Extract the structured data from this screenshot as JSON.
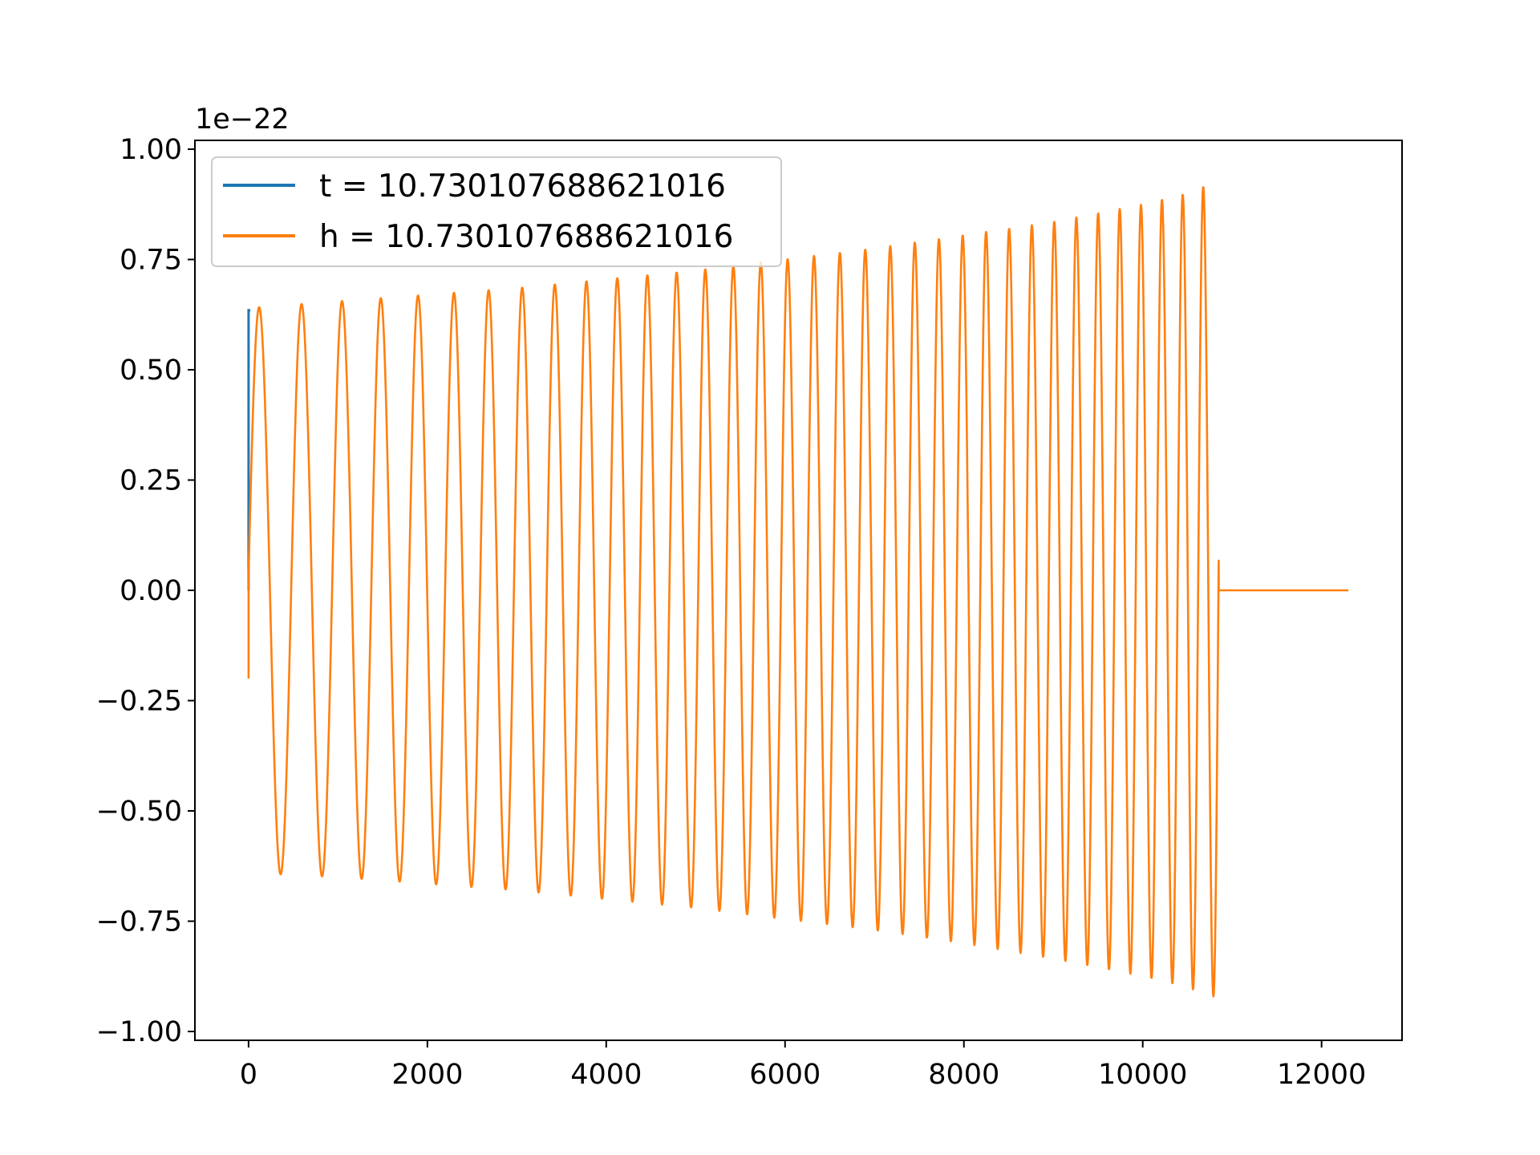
{
  "chart_data": {
    "type": "line",
    "title": "",
    "xlabel": "",
    "ylabel": "",
    "y_offset_label": "1e−22",
    "xlim": [
      -600,
      12900
    ],
    "ylim": [
      -1.02,
      1.02
    ],
    "x_ticks": [
      0,
      2000,
      4000,
      6000,
      8000,
      10000,
      12000
    ],
    "x_tick_labels": [
      "0",
      "2000",
      "4000",
      "6000",
      "8000",
      "10000",
      "12000"
    ],
    "y_ticks": [
      1.0,
      0.75,
      0.5,
      0.25,
      0.0,
      -0.25,
      -0.5,
      -0.75,
      -1.0
    ],
    "y_tick_labels": [
      "1.00",
      "0.75",
      "0.50",
      "0.25",
      "0.00",
      "−0.25",
      "−0.50",
      "−0.75",
      "−1.00"
    ],
    "grid": false,
    "legend_position": "top-left",
    "series": [
      {
        "name": "t = 10.730107688621016",
        "color": "#1f77b4",
        "x": [
          0,
          0,
          20
        ],
        "y": [
          0.0,
          0.635,
          0.635
        ]
      },
      {
        "name": "h = 10.730107688621016",
        "color": "#ff7f0e",
        "envelope": {
          "x": [
            0,
            1000,
            2000,
            3000,
            4000,
            5000,
            6000,
            7000,
            8000,
            9000,
            10000,
            10500,
            10850
          ],
          "upper": [
            0.64,
            0.655,
            0.67,
            0.685,
            0.705,
            0.725,
            0.75,
            0.775,
            0.805,
            0.835,
            0.875,
            0.9,
            0.93
          ],
          "lower": [
            -0.64,
            -0.65,
            -0.665,
            -0.68,
            -0.7,
            -0.72,
            -0.745,
            -0.77,
            -0.8,
            -0.835,
            -0.875,
            -0.9,
            -0.925
          ]
        },
        "flat": {
          "x": [
            10850,
            12300
          ],
          "y": [
            0.0,
            0.0
          ]
        }
      }
    ]
  }
}
